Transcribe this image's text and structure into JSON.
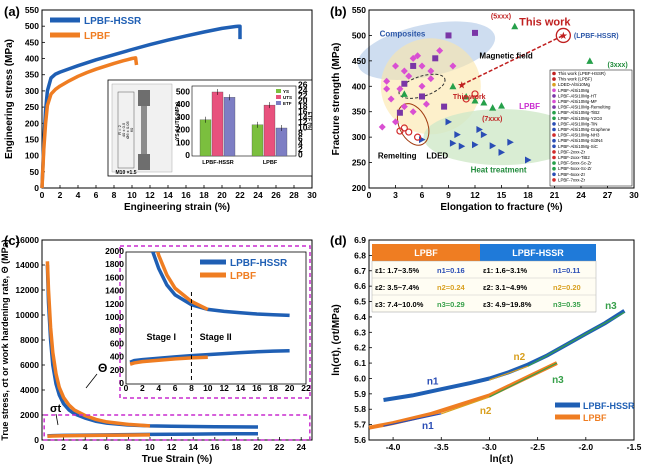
{
  "colors": {
    "hssr": "#1f5fb4",
    "lpbf": "#ef7d22",
    "dash": "#c92ccf",
    "ys": "#7bbf3e",
    "uts": "#e8517d",
    "etf": "#7d7ec4"
  },
  "panels": {
    "a": {
      "label": "(a)"
    },
    "b": {
      "label": "(b)"
    },
    "c": {
      "label": "(c)"
    },
    "d": {
      "label": "(d)"
    }
  },
  "chart_data": [
    {
      "id": "a",
      "type": "line",
      "xlabel": "Engineering strain (%)",
      "ylabel": "Engineering stress (MPa)",
      "xlim": [
        0,
        30
      ],
      "ylim": [
        0,
        550
      ],
      "xticks": [
        0,
        2,
        4,
        6,
        8,
        10,
        12,
        14,
        16,
        18,
        20,
        22,
        24,
        26,
        28,
        30
      ],
      "yticks": [
        0,
        50,
        100,
        150,
        200,
        250,
        300,
        350,
        400,
        450,
        500,
        550
      ],
      "series": [
        {
          "name": "LPBF-HSSR",
          "color": "#1f5fb4",
          "x": [
            0,
            0.2,
            0.4,
            0.6,
            1.0,
            1.5,
            2,
            3,
            4,
            6,
            8,
            10,
            12,
            14,
            16,
            18,
            20,
            21.5,
            21.8,
            22.0,
            22.0
          ],
          "y": [
            0,
            140,
            240,
            300,
            340,
            352,
            358,
            368,
            378,
            396,
            412,
            428,
            443,
            457,
            470,
            482,
            493,
            499,
            500,
            500,
            460
          ]
        },
        {
          "name": "LPBF",
          "color": "#ef7d22",
          "x": [
            0,
            0.2,
            0.4,
            0.6,
            1.0,
            1.5,
            2,
            3,
            4,
            5,
            6,
            7,
            8,
            9,
            10,
            10.4,
            10.5
          ],
          "y": [
            0,
            120,
            200,
            255,
            290,
            305,
            315,
            331,
            345,
            357,
            367,
            376,
            385,
            393,
            400,
            402,
            380
          ]
        }
      ],
      "inset": {
        "type": "bar",
        "specimen_labels": [
          "M10 ×1.5",
          "R = 2",
          "40 ± 0.5",
          "Ø6 ± 0.05",
          "60"
        ],
        "categories": [
          "LPBF-HSSR",
          "LPBF"
        ],
        "ylabel_left": "YS & UTS (MPa)",
        "ylabel_right": "ETF (%)",
        "ylim_left": [
          0,
          550
        ],
        "ylim_right": [
          0,
          26
        ],
        "yticks_left": [
          0,
          100,
          200,
          300,
          400,
          500
        ],
        "yticks_right": [
          0,
          2,
          4,
          6,
          8,
          10,
          12,
          14,
          16,
          18,
          20,
          22,
          24,
          26
        ],
        "legend": [
          "YS",
          "UTS",
          "ETF"
        ],
        "series": [
          {
            "name": "YS",
            "values": [
              285,
              245
            ]
          },
          {
            "name": "UTS",
            "values": [
              503,
              400
            ]
          },
          {
            "name": "ETF",
            "values": [
              21.8,
              10.4
            ],
            "axis": "right"
          }
        ]
      }
    },
    {
      "id": "b",
      "type": "scatter",
      "xlabel": "Elongation to fracture (%)",
      "ylabel": "Fracture strength (MPa)",
      "xlim": [
        0,
        30
      ],
      "ylim": [
        200,
        550
      ],
      "xticks": [
        0,
        3,
        6,
        9,
        12,
        15,
        18,
        21,
        24,
        27,
        30
      ],
      "yticks": [
        200,
        250,
        300,
        350,
        400,
        450,
        500,
        550
      ],
      "annotations": [
        "Composites",
        "(5xxx)",
        "This work",
        "(LPBF-HSSR)",
        "Magnetic field",
        "(3xxx)",
        "This work",
        "LPBF",
        "(7xxx)",
        "Remelting",
        "LDED",
        "Heat treatment"
      ],
      "legend": [
        "This work (LPBF-HSSR)",
        "This work (LPBF)",
        "LDED-AlSi10Mg",
        "LPBF-AlSi10Mg",
        "LPBF-AlSi10Mg-HT",
        "LPBF-AlSi10Mg-MF",
        "LPBF-AlSi10Mg-Remelting",
        "LPBF-AlSi10Mg-TiB2",
        "LPBF-AlSi10Mg-Y2O3",
        "LPBF-AlSi10Mg-TiN",
        "LPBF-AlSi10Mg-Graphene",
        "LPBF-AlSi10Mg-NH3",
        "LPBF-AlSi10Mg-Si3N4",
        "LPBF-AlSi10Mg-SiC",
        "LPBF-2xxx-Zr",
        "LPBF-2xxx-TiB2",
        "LPBF-5xxx-Sc-Zr",
        "LPBF-5xxx-Sc-Zr",
        "LPBF-6xxx-Zr",
        "LPBF-7xxx-Zr"
      ],
      "points": {
        "hssr": [
          22,
          500
        ],
        "lpbf": [
          10.5,
          403
        ],
        "magenta": [
          [
            2,
            410
          ],
          [
            3,
            440
          ],
          [
            4,
            430
          ],
          [
            5,
            455
          ],
          [
            6,
            440
          ],
          [
            3.5,
            395
          ],
          [
            4.5,
            420
          ],
          [
            7,
            415
          ],
          [
            2.5,
            375
          ],
          [
            5.5,
            460
          ],
          [
            6,
            400
          ],
          [
            8,
            470
          ],
          [
            1.5,
            320
          ],
          [
            4,
            360
          ],
          [
            6.5,
            365
          ],
          [
            7,
            430
          ],
          [
            9.5,
            440
          ],
          [
            3,
            330
          ],
          [
            5,
            350
          ],
          [
            2,
            395
          ]
        ],
        "purple": [
          [
            4,
            405
          ],
          [
            6,
            380
          ],
          [
            9,
            500
          ],
          [
            7.5,
            455
          ],
          [
            3.5,
            348
          ],
          [
            12,
            505
          ],
          [
            8.5,
            360
          ],
          [
            5,
            440
          ]
        ],
        "green": [
          [
            12,
            372
          ],
          [
            13,
            368
          ],
          [
            14,
            358
          ],
          [
            15,
            362
          ],
          [
            11,
            380
          ],
          [
            4,
            385
          ],
          [
            25,
            450
          ],
          [
            16.5,
            518
          ],
          [
            9.5,
            400
          ]
        ],
        "blue": [
          [
            9,
            330
          ],
          [
            9.5,
            288
          ],
          [
            10.5,
            282
          ],
          [
            12,
            285
          ],
          [
            14,
            283
          ],
          [
            16,
            290
          ],
          [
            15,
            270
          ],
          [
            18,
            255
          ],
          [
            10,
            305
          ],
          [
            12.5,
            315
          ],
          [
            13,
            305
          ],
          [
            6,
            295
          ]
        ],
        "red": [
          [
            11,
            375
          ],
          [
            12,
            385
          ],
          [
            4.5,
            310
          ],
          [
            4,
            318
          ],
          [
            3.5,
            312
          ],
          [
            5.5,
            300
          ]
        ]
      }
    },
    {
      "id": "c",
      "type": "line",
      "xlabel": "True Strain (%)",
      "ylabel": "True stress, σt or work hardening rate, Θ (MPa)",
      "xlim": [
        0,
        25
      ],
      "ylim": [
        0,
        16000
      ],
      "xticks": [
        0,
        2,
        4,
        6,
        8,
        10,
        12,
        14,
        16,
        18,
        20,
        22,
        24
      ],
      "yticks": [
        0,
        2000,
        4000,
        6000,
        8000,
        10000,
        12000,
        14000,
        16000
      ],
      "annotations": [
        "Θ",
        "σt"
      ],
      "series": [
        {
          "name": "LPBF-HSSR",
          "color": "#1f5fb4",
          "kind": "theta",
          "x": [
            0.5,
            0.6,
            0.8,
            1.0,
            1.3,
            1.6,
            2,
            2.5,
            3,
            4,
            5,
            6,
            8,
            10,
            12,
            14,
            16,
            18,
            20
          ],
          "y": [
            14000,
            11000,
            8000,
            6000,
            4500,
            3600,
            2900,
            2400,
            2100,
            1750,
            1500,
            1350,
            1200,
            1130,
            1100,
            1080,
            1060,
            1050,
            1040
          ]
        },
        {
          "name": "LPBF",
          "color": "#ef7d22",
          "kind": "theta",
          "x": [
            0.5,
            0.6,
            0.8,
            1.0,
            1.3,
            1.6,
            2,
            2.5,
            3,
            4,
            5,
            6,
            8,
            10
          ],
          "y": [
            14300,
            12000,
            9000,
            7000,
            5300,
            4200,
            3400,
            2800,
            2400,
            1950,
            1650,
            1450,
            1250,
            1130
          ]
        },
        {
          "name": "LPBF-HSSR",
          "color": "#1f5fb4",
          "kind": "stress",
          "x": [
            0.5,
            1,
            2,
            4,
            6,
            8,
            10,
            12,
            14,
            16,
            18,
            20
          ],
          "y": [
            330,
            355,
            370,
            390,
            410,
            430,
            445,
            460,
            475,
            488,
            498,
            505
          ]
        },
        {
          "name": "LPBF",
          "color": "#ef7d22",
          "kind": "stress",
          "x": [
            0.5,
            1,
            2,
            4,
            6,
            8,
            10
          ],
          "y": [
            300,
            320,
            340,
            360,
            380,
            395,
            405
          ]
        }
      ],
      "inset": {
        "xlim": [
          0,
          22
        ],
        "ylim": [
          0,
          2000
        ],
        "xticks": [
          0,
          2,
          4,
          6,
          8,
          10,
          12,
          14,
          16,
          18,
          20,
          22
        ],
        "yticks": [
          0,
          200,
          400,
          600,
          800,
          1000,
          1200,
          1400,
          1600,
          1800,
          2000
        ],
        "stage_labels": [
          "Stage I",
          "Stage II"
        ],
        "divider_x": 8
      }
    },
    {
      "id": "d",
      "type": "line",
      "xlabel": "ln(εt)",
      "ylabel": "ln(σt), (σt/MPa)",
      "xlim": [
        -4.25,
        -1.5
      ],
      "ylim": [
        5.6,
        6.9
      ],
      "xticks": [
        -4.0,
        -3.5,
        -3.0,
        -2.5,
        -2.0,
        -1.5
      ],
      "yticks": [
        5.6,
        5.7,
        5.8,
        5.9,
        6.0,
        6.1,
        6.2,
        6.3,
        6.4,
        6.5,
        6.6,
        6.7,
        6.8,
        6.9
      ],
      "annotations": [
        "n1",
        "n2",
        "n3",
        "n1",
        "n2",
        "n3"
      ],
      "table": {
        "headers": [
          "LPBF",
          "LPBF-HSSR"
        ],
        "rows": [
          [
            "ε1: 1.7~3.5%",
            "n1=0.16",
            "ε1: 1.6~3.1%",
            "n1=0.11"
          ],
          [
            "ε2: 3.5~7.4%",
            "n2=0.24",
            "ε2: 3.1~4.9%",
            "n2=0.20"
          ],
          [
            "ε3: 7.4~10.0%",
            "n3=0.29",
            "ε3: 4.9~19.8%",
            "n3=0.35"
          ]
        ]
      },
      "series": [
        {
          "name": "LPBF-HSSR",
          "color": "#1f5fb4",
          "x": [
            -4.1,
            -3.8,
            -3.5,
            -3.2,
            -3.0,
            -2.8,
            -2.6,
            -2.4,
            -2.2,
            -2.0,
            -1.8,
            -1.6
          ],
          "y": [
            5.86,
            5.89,
            5.93,
            5.97,
            6.0,
            6.04,
            6.09,
            6.15,
            6.22,
            6.29,
            6.36,
            6.44
          ]
        },
        {
          "name": "LPBF",
          "color": "#ef7d22",
          "x": [
            -4.25,
            -4.0,
            -3.8,
            -3.6,
            -3.4,
            -3.2,
            -3.0,
            -2.8,
            -2.6,
            -2.4,
            -2.3
          ],
          "y": [
            5.68,
            5.71,
            5.74,
            5.77,
            5.81,
            5.85,
            5.89,
            5.95,
            6.01,
            6.07,
            6.1
          ]
        }
      ]
    }
  ]
}
